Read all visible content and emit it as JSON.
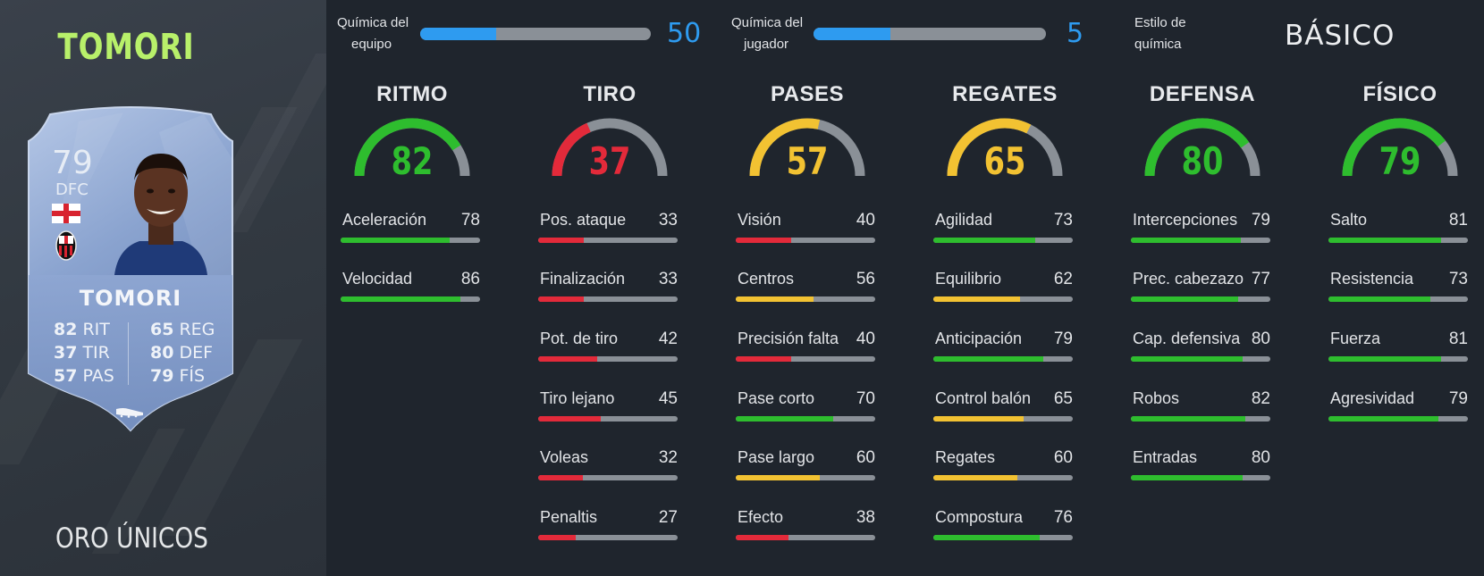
{
  "player": {
    "name": "TOMORI",
    "card_type": "ORO ÚNICOS"
  },
  "card": {
    "rating": "79",
    "position": "DFC",
    "name": "TOMORI",
    "nation_icon": "england-flag-icon",
    "club_icon": "ac-milan-crest-icon",
    "boot_icon": "boot-icon",
    "stats_left": [
      {
        "value": "82",
        "label": "RIT"
      },
      {
        "value": "37",
        "label": "TIR"
      },
      {
        "value": "57",
        "label": "PAS"
      }
    ],
    "stats_right": [
      {
        "value": "65",
        "label": "REG"
      },
      {
        "value": "80",
        "label": "DEF"
      },
      {
        "value": "79",
        "label": "FÍS"
      }
    ]
  },
  "chemistry": {
    "team": {
      "label_line1": "Química del",
      "label_line2": "equipo",
      "value": "50",
      "fill": 0.33
    },
    "player": {
      "label_line1": "Química del",
      "label_line2": "jugador",
      "value": "5",
      "fill": 0.33
    },
    "style": {
      "label_line1": "Estilo de",
      "label_line2": "química",
      "value": "BÁSICO"
    }
  },
  "colors": {
    "green": "#2ebd2e",
    "yellow": "#f2c232",
    "red": "#e32a3a",
    "blue": "#2e9bf0",
    "track": "#8a9097"
  },
  "categories": [
    {
      "title": "RITMO",
      "value": "82",
      "color": "#2ebd2e",
      "stats": [
        {
          "label": "Aceleración",
          "value": "78"
        },
        {
          "label": "Velocidad",
          "value": "86"
        }
      ]
    },
    {
      "title": "TIRO",
      "value": "37",
      "color": "#e32a3a",
      "stats": [
        {
          "label": "Pos. ataque",
          "value": "33"
        },
        {
          "label": "Finalización",
          "value": "33"
        },
        {
          "label": "Pot. de tiro",
          "value": "42"
        },
        {
          "label": "Tiro lejano",
          "value": "45"
        },
        {
          "label": "Voleas",
          "value": "32"
        },
        {
          "label": "Penaltis",
          "value": "27"
        }
      ]
    },
    {
      "title": "PASES",
      "value": "57",
      "color": "#f2c232",
      "stats": [
        {
          "label": "Visión",
          "value": "40"
        },
        {
          "label": "Centros",
          "value": "56"
        },
        {
          "label": "Precisión falta",
          "value": "40"
        },
        {
          "label": "Pase corto",
          "value": "70"
        },
        {
          "label": "Pase largo",
          "value": "60"
        },
        {
          "label": "Efecto",
          "value": "38"
        }
      ]
    },
    {
      "title": "REGATES",
      "value": "65",
      "color": "#f2c232",
      "stats": [
        {
          "label": "Agilidad",
          "value": "73"
        },
        {
          "label": "Equilibrio",
          "value": "62"
        },
        {
          "label": "Anticipación",
          "value": "79"
        },
        {
          "label": "Control balón",
          "value": "65"
        },
        {
          "label": "Regates",
          "value": "60"
        },
        {
          "label": "Compostura",
          "value": "76"
        }
      ]
    },
    {
      "title": "DEFENSA",
      "value": "80",
      "color": "#2ebd2e",
      "stats": [
        {
          "label": "Intercepciones",
          "value": "79"
        },
        {
          "label": "Prec. cabezazo",
          "value": "77"
        },
        {
          "label": "Cap. defensiva",
          "value": "80"
        },
        {
          "label": "Robos",
          "value": "82"
        },
        {
          "label": "Entradas",
          "value": "80"
        }
      ]
    },
    {
      "title": "FÍSICO",
      "value": "79",
      "color": "#2ebd2e",
      "stats": [
        {
          "label": "Salto",
          "value": "81"
        },
        {
          "label": "Resistencia",
          "value": "73"
        },
        {
          "label": "Fuerza",
          "value": "81"
        },
        {
          "label": "Agresividad",
          "value": "79"
        }
      ]
    }
  ]
}
